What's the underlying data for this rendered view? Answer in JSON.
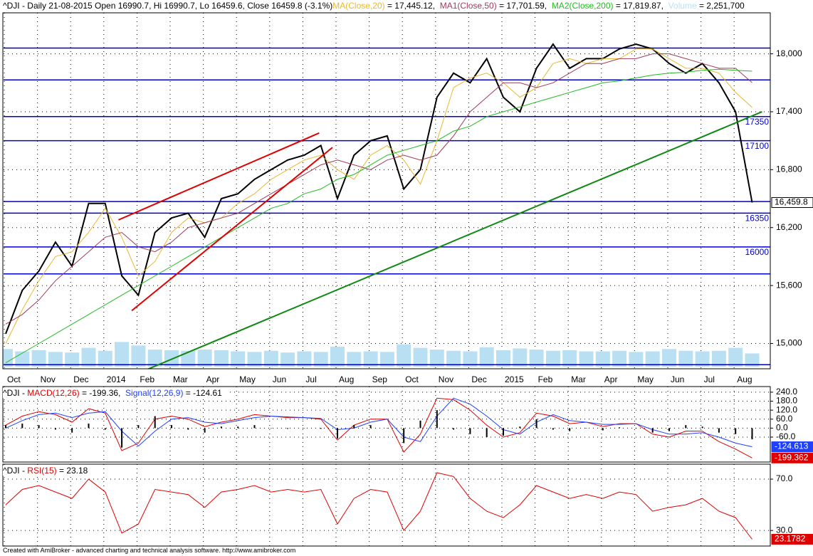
{
  "chart_data": [
    {
      "type": "line",
      "title": "^DJI - Daily 21-08-2015 Open 16990.7, Hi 16990.7, Lo 16459.6, Close 16459.8 (-3.1%)",
      "categories": [
        "Oct",
        null,
        "Nov",
        null,
        "Dec",
        null,
        "2014",
        null,
        "Feb",
        null,
        "Mar",
        null,
        "Apr",
        null,
        "May",
        null,
        "Jun",
        null,
        "Jul",
        null,
        "Aug",
        null,
        "Sep",
        null,
        "Oct",
        null,
        "Nov",
        null,
        "Dec",
        null,
        "2015",
        null,
        "Feb",
        null,
        "Mar",
        null,
        "Apr",
        null,
        "May",
        null,
        "Jun",
        null,
        "Jul",
        null,
        "Aug",
        null
      ],
      "ylim": [
        14760,
        18410
      ],
      "yticks": [
        {
          "value": 15000,
          "label": "15,000"
        },
        {
          "value": 15600,
          "label": "15,600"
        },
        {
          "value": 16200,
          "label": "16,200"
        },
        {
          "value": 16800,
          "label": "16,800"
        },
        {
          "value": 17400,
          "label": "17,400"
        },
        {
          "value": 18000,
          "label": "18,000"
        }
      ],
      "grid": true,
      "series": [
        {
          "color": "#000000",
          "width": 2,
          "values": [
            15100,
            15550,
            15750,
            16050,
            15800,
            16450,
            16450,
            15700,
            15500,
            16150,
            16300,
            16350,
            16100,
            16500,
            16550,
            16700,
            16800,
            16900,
            16950,
            17050,
            16500,
            16950,
            17100,
            17150,
            16600,
            16800,
            17550,
            17800,
            17700,
            17950,
            17550,
            17400,
            17850,
            18100,
            17850,
            17950,
            17950,
            18050,
            18100,
            18050,
            17900,
            17800,
            17900,
            17700,
            17400,
            16459.8
          ],
          "value_labels": {
            "45": "16,459.8"
          }
        },
        {
          "name": "MA(Close,20)",
          "legend_text": "= 17,445.12,",
          "color": "#e8b830",
          "width": 1,
          "values": [
            15000,
            15350,
            15650,
            15900,
            15950,
            16150,
            16400,
            16100,
            15700,
            15850,
            16150,
            16300,
            16250,
            16300,
            16450,
            16550,
            16700,
            16800,
            16900,
            16950,
            16800,
            16700,
            16950,
            17050,
            16900,
            16650,
            17100,
            17650,
            17750,
            17800,
            17700,
            17550,
            17650,
            17900,
            17950,
            17900,
            17950,
            17950,
            18050,
            18050,
            17950,
            17850,
            17850,
            17800,
            17600,
            17445.12
          ]
        },
        {
          "name": "MA1(Close,50)",
          "legend_text": "= 17,701.59,",
          "color": "#a03c5a",
          "width": 1,
          "values": [
            15200,
            15300,
            15450,
            15650,
            15800,
            15950,
            16100,
            16150,
            16000,
            15950,
            16050,
            16200,
            16250,
            16300,
            16350,
            16450,
            16550,
            16650,
            16750,
            16850,
            16900,
            16850,
            16800,
            16900,
            16950,
            16900,
            16950,
            17150,
            17400,
            17550,
            17700,
            17700,
            17650,
            17700,
            17800,
            17900,
            17900,
            17950,
            17950,
            18000,
            18000,
            17950,
            17900,
            17850,
            17850,
            17701.59
          ]
        },
        {
          "name": "MA2(Close,200)",
          "legend_text": "= 17,819.87,",
          "color": "#22bb22",
          "width": 1,
          "values": [
            14800,
            14900,
            15000,
            15100,
            15200,
            15300,
            15400,
            15500,
            15600,
            15700,
            15800,
            15900,
            16000,
            16100,
            16200,
            16300,
            16400,
            16450,
            16550,
            16600,
            16700,
            16750,
            16850,
            16950,
            17000,
            17050,
            17100,
            17200,
            17250,
            17350,
            17400,
            17450,
            17500,
            17550,
            17600,
            17650,
            17700,
            17720,
            17750,
            17780,
            17800,
            17810,
            17830,
            17840,
            17830,
            17819.87
          ]
        }
      ],
      "volume": {
        "name": "Volume",
        "legend_text": "= 2,251,700",
        "color": "#b8e0f2",
        "vlim": [
          0,
          60000000
        ],
        "values": [
          3000000,
          2600000,
          2800000,
          2500000,
          2400000,
          3200000,
          2700000,
          4200000,
          3600000,
          2900000,
          2800000,
          2700000,
          2900000,
          2800000,
          2600000,
          2500000,
          2700000,
          2400000,
          2600000,
          2500000,
          3400000,
          2500000,
          2600000,
          2500000,
          3800000,
          3200000,
          2900000,
          2700000,
          2600000,
          3300000,
          2800000,
          3100000,
          2900000,
          2700000,
          2800000,
          2600000,
          2600000,
          2700000,
          2500000,
          2600000,
          3000000,
          2700000,
          2600000,
          2700000,
          3200000,
          2251700
        ]
      },
      "levels": [
        18060,
        17730,
        17350,
        17100,
        16470,
        16350,
        16000,
        15720,
        14780
      ],
      "level_color": "#0000cc",
      "level_labels": [
        17350,
        17100,
        16350,
        16000
      ],
      "trendlines": [
        {
          "color": "#118811",
          "x": [
            8.1,
            45.6
          ],
          "y": [
            14700,
            17400
          ]
        },
        {
          "color": "#e00000",
          "x": [
            6.8,
            18.9
          ],
          "y": [
            16280,
            17180
          ]
        },
        {
          "color": "#e00000",
          "x": [
            7.6,
            19.7
          ],
          "y": [
            15340,
            17030
          ]
        }
      ]
    },
    {
      "type": "line",
      "title": "^DJI - ",
      "ylim": [
        -217,
        268
      ],
      "yticks": [
        {
          "value": -60,
          "label": "-60.0"
        },
        {
          "value": 0,
          "label": "0.0"
        },
        {
          "value": 60,
          "label": "60.0"
        },
        {
          "value": 120,
          "label": "120.0"
        },
        {
          "value": 180,
          "label": "180.0"
        },
        {
          "value": 240,
          "label": "240.0"
        }
      ],
      "grid": true,
      "series": [
        {
          "name": "MACD(12,26)",
          "legend_text": "= -199.36,",
          "color": "#e00000",
          "width": 1,
          "values": [
            20,
            80,
            110,
            90,
            40,
            130,
            100,
            -150,
            -100,
            60,
            80,
            60,
            10,
            40,
            60,
            90,
            80,
            70,
            70,
            60,
            -80,
            20,
            60,
            60,
            -160,
            -40,
            200,
            190,
            120,
            20,
            -60,
            -30,
            100,
            80,
            30,
            40,
            10,
            30,
            30,
            -40,
            -60,
            -20,
            -20,
            -90,
            -140,
            -199.362
          ],
          "value_labels": {
            "45": "-199.362"
          }
        },
        {
          "name": "Signal(12,26,9)",
          "legend_text": "= -124.61",
          "color": "#2040ff",
          "width": 1,
          "values": [
            0,
            50,
            90,
            100,
            70,
            100,
            110,
            -20,
            -120,
            -20,
            60,
            70,
            40,
            30,
            50,
            70,
            80,
            75,
            70,
            65,
            -10,
            0,
            40,
            60,
            -60,
            -90,
            80,
            200,
            160,
            80,
            -10,
            -40,
            40,
            90,
            50,
            40,
            25,
            25,
            30,
            -10,
            -40,
            -40,
            -30,
            -60,
            -100,
            -124.613
          ],
          "value_labels": {
            "45": "-124.613"
          }
        },
        {
          "style": "bars",
          "color": "#000000",
          "values": [
            20,
            30,
            20,
            -10,
            -30,
            30,
            -10,
            -130,
            20,
            80,
            20,
            -10,
            -30,
            10,
            10,
            20,
            0,
            -5,
            0,
            -5,
            -70,
            20,
            20,
            0,
            -100,
            50,
            120,
            -10,
            -40,
            -60,
            -50,
            10,
            60,
            -10,
            -20,
            0,
            -15,
            5,
            0,
            -30,
            -20,
            20,
            10,
            -30,
            -40,
            -74.749
          ]
        }
      ]
    },
    {
      "type": "line",
      "title": "^DJI - ",
      "ylim": [
        19,
        80
      ],
      "yticks": [
        {
          "value": 30,
          "label": "30.0"
        },
        {
          "value": 70,
          "label": "70.0"
        }
      ],
      "grid": true,
      "series": [
        {
          "name": "RSI(15)",
          "legend_text": "= 23.18",
          "color": "#e00000",
          "width": 1,
          "values": [
            50,
            62,
            65,
            60,
            55,
            70,
            60,
            28,
            35,
            62,
            60,
            58,
            48,
            60,
            62,
            65,
            60,
            62,
            60,
            62,
            35,
            55,
            62,
            60,
            30,
            45,
            75,
            72,
            55,
            45,
            40,
            50,
            65,
            60,
            55,
            58,
            55,
            60,
            58,
            45,
            48,
            50,
            55,
            45,
            40,
            23.1782
          ],
          "value_labels": {
            "45": "23.1782"
          }
        }
      ]
    }
  ],
  "footer": "Created with AmiBroker - advanced charting and technical analysis software. http://www.amibroker.com"
}
